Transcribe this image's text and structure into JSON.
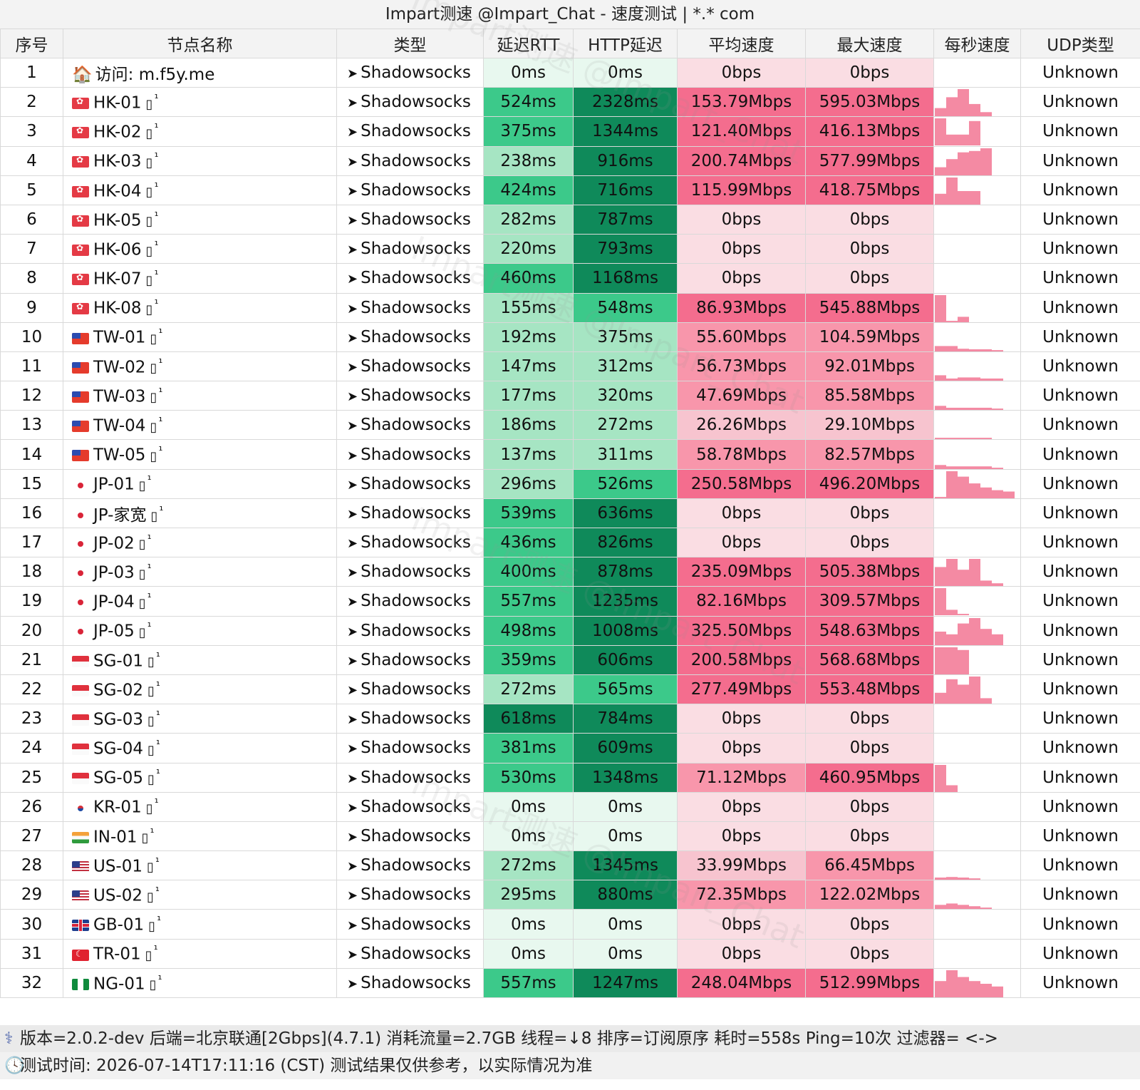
{
  "title": "Impart测速 @Impart_Chat - 速度测试 | *.* com",
  "columns": [
    "序号",
    "节点名称",
    "类型",
    "延迟RTT",
    "HTTP延迟",
    "平均速度",
    "最大速度",
    "每秒速度",
    "UDP类型"
  ],
  "watermark": "Impart测速 @Impart_Chat",
  "colors": {
    "rtt_zero": "#e8f8ef",
    "rtt_light": "#a6e5c3",
    "rtt_mid": "#3cc98a",
    "rtt_dark": "#11a16a",
    "rtt_darkest": "#0f8a5a",
    "spd_zero": "#fadde3",
    "spd_light": "#f7c4cf",
    "spd_mid": "#f896ab",
    "spd_dark": "#f46d8e",
    "spark": "#f48aa3"
  },
  "rows": [
    {
      "idx": "1",
      "flag": "house",
      "name": "访问: m.f5y.me",
      "type": "Shadowsocks",
      "rtt": "0ms",
      "http": "0ms",
      "avg": "0bps",
      "max": "0bps",
      "udp": "Unknown",
      "rttc": "rtt_zero",
      "httpc": "rtt_zero",
      "avgc": "spd_zero",
      "maxc": "spd_zero",
      "spark": []
    },
    {
      "idx": "2",
      "flag": "hk",
      "name": "HK-01",
      "type": "Shadowsocks",
      "rtt": "524ms",
      "http": "2328ms",
      "avg": "153.79Mbps",
      "max": "595.03Mbps",
      "udp": "Unknown",
      "rttc": "rtt_mid",
      "httpc": "rtt_darkest",
      "avgc": "spd_dark",
      "maxc": "spd_dark",
      "spark": [
        0.3,
        0.7,
        1.0,
        0.45,
        0.15
      ]
    },
    {
      "idx": "3",
      "flag": "hk",
      "name": "HK-02",
      "type": "Shadowsocks",
      "rtt": "375ms",
      "http": "1344ms",
      "avg": "121.40Mbps",
      "max": "416.13Mbps",
      "udp": "Unknown",
      "rttc": "rtt_mid",
      "httpc": "rtt_darkest",
      "avgc": "spd_dark",
      "maxc": "spd_dark",
      "spark": [
        1.0,
        0.4,
        0.4,
        0.9
      ]
    },
    {
      "idx": "4",
      "flag": "hk",
      "name": "HK-03",
      "type": "Shadowsocks",
      "rtt": "238ms",
      "http": "916ms",
      "avg": "200.74Mbps",
      "max": "577.99Mbps",
      "udp": "Unknown",
      "rttc": "rtt_light",
      "httpc": "rtt_darkest",
      "avgc": "spd_dark",
      "maxc": "spd_dark",
      "spark": [
        0.3,
        0.6,
        0.85,
        0.9,
        1.0
      ]
    },
    {
      "idx": "5",
      "flag": "hk",
      "name": "HK-04",
      "type": "Shadowsocks",
      "rtt": "424ms",
      "http": "716ms",
      "avg": "115.99Mbps",
      "max": "418.75Mbps",
      "udp": "Unknown",
      "rttc": "rtt_mid",
      "httpc": "rtt_darkest",
      "avgc": "spd_dark",
      "maxc": "spd_dark",
      "spark": [
        0.4,
        1.0,
        0.5,
        0.5
      ]
    },
    {
      "idx": "6",
      "flag": "hk",
      "name": "HK-05",
      "type": "Shadowsocks",
      "rtt": "282ms",
      "http": "787ms",
      "avg": "0bps",
      "max": "0bps",
      "udp": "Unknown",
      "rttc": "rtt_light",
      "httpc": "rtt_darkest",
      "avgc": "spd_zero",
      "maxc": "spd_zero",
      "spark": []
    },
    {
      "idx": "7",
      "flag": "hk",
      "name": "HK-06",
      "type": "Shadowsocks",
      "rtt": "220ms",
      "http": "793ms",
      "avg": "0bps",
      "max": "0bps",
      "udp": "Unknown",
      "rttc": "rtt_light",
      "httpc": "rtt_darkest",
      "avgc": "spd_zero",
      "maxc": "spd_zero",
      "spark": []
    },
    {
      "idx": "8",
      "flag": "hk",
      "name": "HK-07",
      "type": "Shadowsocks",
      "rtt": "460ms",
      "http": "1168ms",
      "avg": "0bps",
      "max": "0bps",
      "udp": "Unknown",
      "rttc": "rtt_mid",
      "httpc": "rtt_darkest",
      "avgc": "spd_zero",
      "maxc": "spd_zero",
      "spark": []
    },
    {
      "idx": "9",
      "flag": "hk",
      "name": "HK-08",
      "type": "Shadowsocks",
      "rtt": "155ms",
      "http": "548ms",
      "avg": "86.93Mbps",
      "max": "545.88Mbps",
      "udp": "Unknown",
      "rttc": "rtt_light",
      "httpc": "rtt_mid",
      "avgc": "spd_dark",
      "maxc": "spd_dark",
      "spark": [
        1.0,
        0.05,
        0.2
      ]
    },
    {
      "idx": "10",
      "flag": "tw",
      "name": "TW-01",
      "type": "Shadowsocks",
      "rtt": "192ms",
      "http": "375ms",
      "avg": "55.60Mbps",
      "max": "104.59Mbps",
      "udp": "Unknown",
      "rttc": "rtt_light",
      "httpc": "rtt_light",
      "avgc": "spd_mid",
      "maxc": "spd_mid",
      "spark": [
        0.2,
        0.2,
        0.1,
        0.08,
        0.08,
        0.05
      ]
    },
    {
      "idx": "11",
      "flag": "tw",
      "name": "TW-02",
      "type": "Shadowsocks",
      "rtt": "147ms",
      "http": "312ms",
      "avg": "56.73Mbps",
      "max": "92.01Mbps",
      "udp": "Unknown",
      "rttc": "rtt_light",
      "httpc": "rtt_light",
      "avgc": "spd_mid",
      "maxc": "spd_mid",
      "spark": [
        0.2,
        0.08,
        0.12,
        0.12,
        0.08,
        0.08
      ]
    },
    {
      "idx": "12",
      "flag": "tw",
      "name": "TW-03",
      "type": "Shadowsocks",
      "rtt": "177ms",
      "http": "320ms",
      "avg": "47.69Mbps",
      "max": "85.58Mbps",
      "udp": "Unknown",
      "rttc": "rtt_light",
      "httpc": "rtt_light",
      "avgc": "spd_mid",
      "maxc": "spd_mid",
      "spark": [
        0.15,
        0.08,
        0.08,
        0.08,
        0.08,
        0.05
      ]
    },
    {
      "idx": "13",
      "flag": "tw",
      "name": "TW-04",
      "type": "Shadowsocks",
      "rtt": "186ms",
      "http": "272ms",
      "avg": "26.26Mbps",
      "max": "29.10Mbps",
      "udp": "Unknown",
      "rttc": "rtt_light",
      "httpc": "rtt_light",
      "avgc": "spd_light",
      "maxc": "spd_light",
      "spark": [
        0.05,
        0.05,
        0.05,
        0.05,
        0.05
      ]
    },
    {
      "idx": "14",
      "flag": "tw",
      "name": "TW-05",
      "type": "Shadowsocks",
      "rtt": "137ms",
      "http": "311ms",
      "avg": "58.78Mbps",
      "max": "82.57Mbps",
      "udp": "Unknown",
      "rttc": "rtt_light",
      "httpc": "rtt_light",
      "avgc": "spd_mid",
      "maxc": "spd_mid",
      "spark": [
        0.15,
        0.1,
        0.1,
        0.1,
        0.1,
        0.05
      ]
    },
    {
      "idx": "15",
      "flag": "jp",
      "name": "JP-01",
      "type": "Shadowsocks",
      "rtt": "296ms",
      "http": "526ms",
      "avg": "250.58Mbps",
      "max": "496.20Mbps",
      "udp": "Unknown",
      "rttc": "rtt_light",
      "httpc": "rtt_mid",
      "avgc": "spd_dark",
      "maxc": "spd_dark",
      "spark": [
        0.05,
        1.0,
        0.8,
        0.55,
        0.4,
        0.3,
        0.25
      ]
    },
    {
      "idx": "16",
      "flag": "jp",
      "name": "JP-家宽",
      "type": "Shadowsocks",
      "rtt": "539ms",
      "http": "636ms",
      "avg": "0bps",
      "max": "0bps",
      "udp": "Unknown",
      "rttc": "rtt_mid",
      "httpc": "rtt_darkest",
      "avgc": "spd_zero",
      "maxc": "spd_zero",
      "spark": []
    },
    {
      "idx": "17",
      "flag": "jp",
      "name": "JP-02",
      "type": "Shadowsocks",
      "rtt": "436ms",
      "http": "826ms",
      "avg": "0bps",
      "max": "0bps",
      "udp": "Unknown",
      "rttc": "rtt_mid",
      "httpc": "rtt_darkest",
      "avgc": "spd_zero",
      "maxc": "spd_zero",
      "spark": []
    },
    {
      "idx": "18",
      "flag": "jp",
      "name": "JP-03",
      "type": "Shadowsocks",
      "rtt": "400ms",
      "http": "878ms",
      "avg": "235.09Mbps",
      "max": "505.38Mbps",
      "udp": "Unknown",
      "rttc": "rtt_mid",
      "httpc": "rtt_darkest",
      "avgc": "spd_dark",
      "maxc": "spd_dark",
      "spark": [
        0.7,
        1.0,
        0.6,
        1.0,
        0.2,
        0.1
      ]
    },
    {
      "idx": "19",
      "flag": "jp",
      "name": "JP-04",
      "type": "Shadowsocks",
      "rtt": "557ms",
      "http": "1235ms",
      "avg": "82.16Mbps",
      "max": "309.57Mbps",
      "udp": "Unknown",
      "rttc": "rtt_mid",
      "httpc": "rtt_darkest",
      "avgc": "spd_dark",
      "maxc": "spd_dark",
      "spark": [
        1.0,
        0.2,
        0.05
      ]
    },
    {
      "idx": "20",
      "flag": "jp",
      "name": "JP-05",
      "type": "Shadowsocks",
      "rtt": "498ms",
      "http": "1008ms",
      "avg": "325.50Mbps",
      "max": "548.63Mbps",
      "udp": "Unknown",
      "rttc": "rtt_mid",
      "httpc": "rtt_darkest",
      "avgc": "spd_dark",
      "maxc": "spd_dark",
      "spark": [
        0.5,
        0.4,
        0.8,
        1.0,
        0.6,
        0.4
      ]
    },
    {
      "idx": "21",
      "flag": "sg",
      "name": "SG-01",
      "type": "Shadowsocks",
      "rtt": "359ms",
      "http": "606ms",
      "avg": "200.58Mbps",
      "max": "568.68Mbps",
      "udp": "Unknown",
      "rttc": "rtt_mid",
      "httpc": "rtt_darkest",
      "avgc": "spd_dark",
      "maxc": "spd_dark",
      "spark": [
        1.0,
        1.0,
        0.9
      ]
    },
    {
      "idx": "22",
      "flag": "sg",
      "name": "SG-02",
      "type": "Shadowsocks",
      "rtt": "272ms",
      "http": "565ms",
      "avg": "277.49Mbps",
      "max": "553.48Mbps",
      "udp": "Unknown",
      "rttc": "rtt_light",
      "httpc": "rtt_mid",
      "avgc": "spd_dark",
      "maxc": "spd_dark",
      "spark": [
        0.4,
        0.9,
        0.7,
        1.0,
        0.2
      ]
    },
    {
      "idx": "23",
      "flag": "sg",
      "name": "SG-03",
      "type": "Shadowsocks",
      "rtt": "618ms",
      "http": "784ms",
      "avg": "0bps",
      "max": "0bps",
      "udp": "Unknown",
      "rttc": "rtt_darkest",
      "httpc": "rtt_darkest",
      "avgc": "spd_zero",
      "maxc": "spd_zero",
      "spark": []
    },
    {
      "idx": "24",
      "flag": "sg",
      "name": "SG-04",
      "type": "Shadowsocks",
      "rtt": "381ms",
      "http": "609ms",
      "avg": "0bps",
      "max": "0bps",
      "udp": "Unknown",
      "rttc": "rtt_mid",
      "httpc": "rtt_darkest",
      "avgc": "spd_zero",
      "maxc": "spd_zero",
      "spark": []
    },
    {
      "idx": "25",
      "flag": "sg",
      "name": "SG-05",
      "type": "Shadowsocks",
      "rtt": "530ms",
      "http": "1348ms",
      "avg": "71.12Mbps",
      "max": "460.95Mbps",
      "udp": "Unknown",
      "rttc": "rtt_mid",
      "httpc": "rtt_darkest",
      "avgc": "spd_mid",
      "maxc": "spd_dark",
      "spark": [
        1.0,
        0.25
      ]
    },
    {
      "idx": "26",
      "flag": "kr",
      "name": "KR-01",
      "type": "Shadowsocks",
      "rtt": "0ms",
      "http": "0ms",
      "avg": "0bps",
      "max": "0bps",
      "udp": "Unknown",
      "rttc": "rtt_zero",
      "httpc": "rtt_zero",
      "avgc": "spd_zero",
      "maxc": "spd_zero",
      "spark": []
    },
    {
      "idx": "27",
      "flag": "in",
      "name": "IN-01",
      "type": "Shadowsocks",
      "rtt": "0ms",
      "http": "0ms",
      "avg": "0bps",
      "max": "0bps",
      "udp": "Unknown",
      "rttc": "rtt_zero",
      "httpc": "rtt_zero",
      "avgc": "spd_zero",
      "maxc": "spd_zero",
      "spark": []
    },
    {
      "idx": "28",
      "flag": "us",
      "name": "US-01",
      "type": "Shadowsocks",
      "rtt": "272ms",
      "http": "1345ms",
      "avg": "33.99Mbps",
      "max": "66.45Mbps",
      "udp": "Unknown",
      "rttc": "rtt_light",
      "httpc": "rtt_darkest",
      "avgc": "spd_light",
      "maxc": "spd_mid",
      "spark": [
        0.08,
        0.1,
        0.08,
        0.05
      ]
    },
    {
      "idx": "29",
      "flag": "us",
      "name": "US-02",
      "type": "Shadowsocks",
      "rtt": "295ms",
      "http": "880ms",
      "avg": "72.35Mbps",
      "max": "122.02Mbps",
      "udp": "Unknown",
      "rttc": "rtt_light",
      "httpc": "rtt_darkest",
      "avgc": "spd_mid",
      "maxc": "spd_mid",
      "spark": [
        0.15,
        0.2,
        0.15,
        0.1,
        0.05
      ]
    },
    {
      "idx": "30",
      "flag": "gb",
      "name": "GB-01",
      "type": "Shadowsocks",
      "rtt": "0ms",
      "http": "0ms",
      "avg": "0bps",
      "max": "0bps",
      "udp": "Unknown",
      "rttc": "rtt_zero",
      "httpc": "rtt_zero",
      "avgc": "spd_zero",
      "maxc": "spd_zero",
      "spark": []
    },
    {
      "idx": "31",
      "flag": "tr",
      "name": "TR-01",
      "type": "Shadowsocks",
      "rtt": "0ms",
      "http": "0ms",
      "avg": "0bps",
      "max": "0bps",
      "udp": "Unknown",
      "rttc": "rtt_zero",
      "httpc": "rtt_zero",
      "avgc": "spd_zero",
      "maxc": "spd_zero",
      "spark": []
    },
    {
      "idx": "32",
      "flag": "ng",
      "name": "NG-01",
      "type": "Shadowsocks",
      "rtt": "557ms",
      "http": "1247ms",
      "avg": "248.04Mbps",
      "max": "512.99Mbps",
      "udp": "Unknown",
      "rttc": "rtt_mid",
      "httpc": "rtt_darkest",
      "avgc": "spd_dark",
      "maxc": "spd_dark",
      "spark": [
        0.6,
        1.0,
        0.75,
        0.6,
        0.5,
        0.4
      ]
    }
  ],
  "footer": {
    "line1": "版本=2.0.2-dev  后端=北京联通[2Gbps](4.7.1) 消耗流量=2.7GB  线程=↓8  排序=订阅原序  耗时=558s  Ping=10次  过滤器= <->",
    "line2": "测试时间: 2026-07-14T17:11:16 (CST)  测试结果仅供参考，以实际情况为准"
  }
}
